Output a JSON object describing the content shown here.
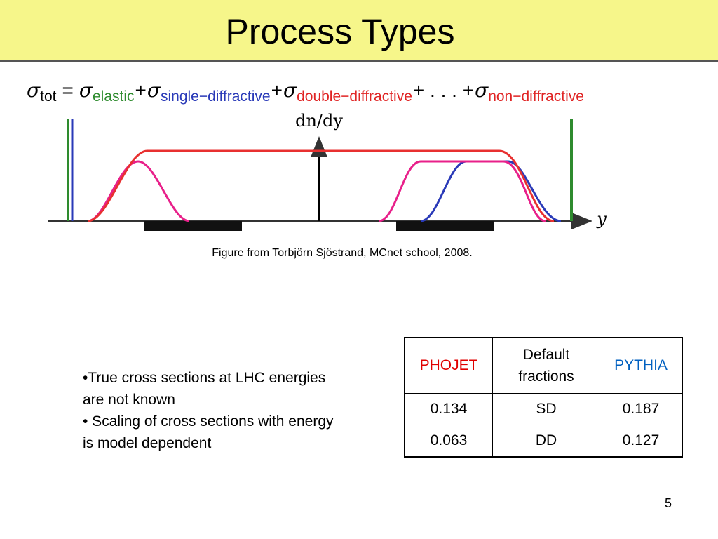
{
  "header": {
    "title": "Process Types"
  },
  "equation": {
    "lhs": {
      "symbol": "σ",
      "subscript": "tot",
      "color": "#000000"
    },
    "equals": "=",
    "terms": [
      {
        "symbol": "σ",
        "subscript": "elastic",
        "color": "#2e8b2e"
      },
      {
        "symbol": "σ",
        "subscript": "single−diffractive",
        "color": "#2a3ab8"
      },
      {
        "symbol": "σ",
        "subscript": "double−diffractive",
        "color": "#e02424"
      },
      {
        "symbol": "σ",
        "subscript": "non−diffractive",
        "color": "#e02424"
      }
    ],
    "separators": [
      "+",
      "+",
      "+ . . . +"
    ]
  },
  "figure": {
    "y_axis_label": "dn/dy",
    "x_axis_label": "y",
    "caption": "Figure from Torbjörn Sjöstrand, MCnet school, 2008."
  },
  "bullets": [
    "•True cross sections at LHC energies are not known",
    "• Scaling of cross sections with energy is model dependent"
  ],
  "table": {
    "header": [
      {
        "text": "PHOJET",
        "color": "#e00000"
      },
      {
        "text": "Default fractions",
        "color": "#000000"
      },
      {
        "text": "PYTHIA",
        "color": "#0060c0"
      }
    ],
    "rows": [
      [
        "0.134",
        "SD",
        "0.187"
      ],
      [
        "0.063",
        "DD",
        "0.127"
      ]
    ]
  },
  "footer": {
    "page_number": "5"
  }
}
